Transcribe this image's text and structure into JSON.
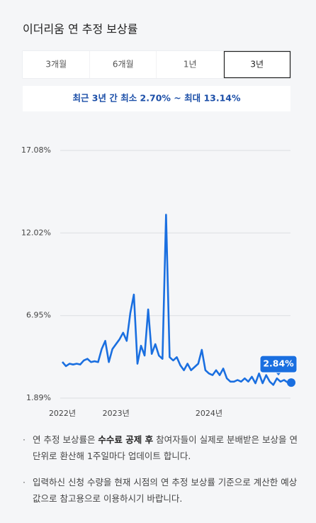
{
  "header": {
    "title": "이더리움 연 추정 보상률"
  },
  "tabs": [
    "3개월",
    "6개월",
    "1년",
    "3년"
  ],
  "selected_tab": 3,
  "range_text": "최근 3년 간 최소 2.70% ~ 최대 13.14%",
  "chart_data": {
    "type": "line",
    "categories": [
      "2022년",
      null,
      null,
      null,
      null,
      null,
      null,
      null,
      null,
      null,
      null,
      null,
      null,
      null,
      null,
      "2023년",
      null,
      null,
      null,
      null,
      null,
      null,
      null,
      null,
      null,
      null,
      null,
      null,
      null,
      null,
      null,
      null,
      null,
      null,
      null,
      null,
      null,
      null,
      null,
      null,
      null,
      "2024년",
      null,
      null,
      null,
      null,
      null,
      null,
      null,
      null,
      null,
      null,
      null,
      null,
      null,
      null,
      null,
      null,
      null,
      null,
      null,
      null,
      null,
      null,
      null
    ],
    "series": [
      {
        "name": "연 추정 보상률",
        "color": "#1a6fe0",
        "values": [
          4.11,
          3.85,
          4.0,
          3.95,
          4.0,
          3.95,
          4.2,
          4.3,
          4.1,
          4.15,
          4.1,
          4.9,
          5.4,
          4.1,
          4.9,
          5.2,
          5.5,
          5.9,
          5.4,
          7.1,
          8.24,
          4.0,
          5.1,
          4.5,
          7.33,
          4.6,
          5.2,
          4.5,
          4.3,
          13.14,
          4.4,
          4.2,
          4.4,
          3.9,
          3.6,
          4.0,
          3.6,
          3.8,
          4.0,
          4.85,
          3.6,
          3.4,
          3.3,
          3.6,
          3.3,
          3.7,
          3.1,
          2.9,
          2.9,
          3.0,
          2.9,
          3.1,
          2.9,
          3.2,
          2.8,
          3.4,
          2.8,
          3.3,
          2.9,
          2.7,
          3.1,
          2.9,
          3.0,
          2.85,
          2.84
        ],
        "value_labels": [
          null,
          null,
          null,
          null,
          null,
          null,
          null,
          null,
          null,
          null,
          null,
          null,
          null,
          null,
          null,
          null,
          null,
          null,
          null,
          null,
          null,
          null,
          null,
          null,
          null,
          null,
          null,
          null,
          null,
          null,
          null,
          null,
          null,
          null,
          null,
          null,
          null,
          null,
          null,
          null,
          null,
          null,
          null,
          null,
          null,
          null,
          null,
          null,
          null,
          null,
          null,
          null,
          null,
          null,
          null,
          null,
          null,
          null,
          null,
          null,
          null,
          null,
          null,
          null,
          "2.84%"
        ]
      }
    ],
    "ylim": [
      1.89,
      17.08
    ],
    "yticks": [
      {
        "value": 1.89,
        "label": "1.89%"
      },
      {
        "value": 6.95,
        "label": "6.95%"
      },
      {
        "value": 12.02,
        "label": "12.02%"
      },
      {
        "value": 17.08,
        "label": "17.08%"
      }
    ],
    "grid": true
  },
  "notes": [
    {
      "before": "연 추정 보상률은 ",
      "bold": "수수료 공제 후",
      "after": " 참여자들이 실제로 분배받은 보상을 연 단위로 환산해 1주일마다 업데이트 합니다."
    },
    {
      "before": "입력하신 신청 수량을 현재 시점의 연 추정 보상률 기준으로 계산한 예상값으로 참고용으로 이용하시기 바랍니다."
    }
  ]
}
